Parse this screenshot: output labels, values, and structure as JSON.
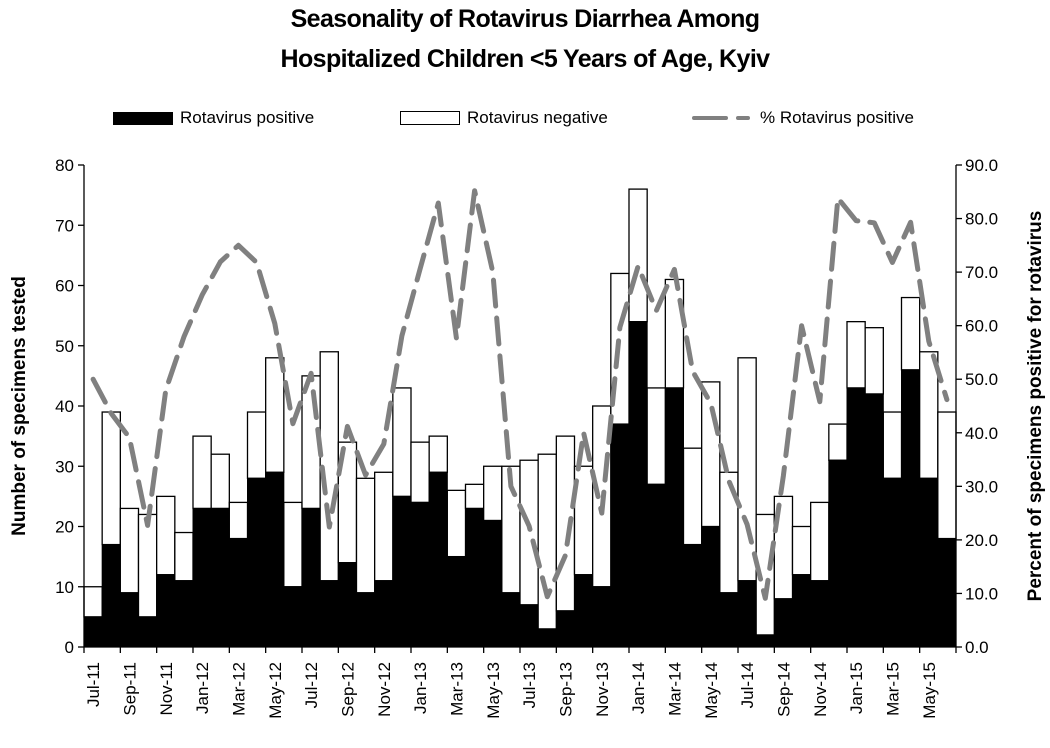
{
  "chart_data": {
    "type": "bar",
    "title": "Seasonality of Rotavirus Diarrhea Among Hospitalized Children <5 Years of Age, Kyiv",
    "title_lines": [
      "Seasonality of Rotavirus Diarrhea Among",
      "Hospitalized Children <5 Years of Age, Kyiv"
    ],
    "ylabel": "Number of specimens tested",
    "y2label": "Percent of specimens positive for rotavirus",
    "xlabel": "",
    "ylim": [
      0,
      80
    ],
    "y2lim": [
      0,
      90
    ],
    "yticks": [
      "0",
      "10",
      "20",
      "30",
      "40",
      "50",
      "60",
      "70",
      "80"
    ],
    "y2ticks": [
      "0.0",
      "10.0",
      "20.0",
      "30.0",
      "40.0",
      "50.0",
      "60.0",
      "70.0",
      "80.0",
      "90.0"
    ],
    "grid": false,
    "legend_position": "top",
    "legend": [
      {
        "label": "Rotavirus positive",
        "style": "black-fill"
      },
      {
        "label": "Rotavirus negative",
        "style": "white-fill"
      },
      {
        "label": "% Rotavirus positive",
        "style": "gray-dashed-line"
      }
    ],
    "colors": {
      "positive": "#000000",
      "negative": "#ffffff",
      "percent_line": "#808080"
    },
    "xtick_labels": [
      "Jul-11",
      "Sep-11",
      "Nov-11",
      "Jan-12",
      "Mar-12",
      "May-12",
      "Jul-12",
      "Sep-12",
      "Nov-12",
      "Jan-13",
      "Mar-13",
      "May-13",
      "Jul-13",
      "Sep-13",
      "Nov-13",
      "Jan-14",
      "Mar-14",
      "May-14",
      "Jul-14",
      "Sep-14",
      "Nov-14",
      "Jan-15",
      "Mar-15",
      "May-15"
    ],
    "categories": [
      "Jul-11",
      "Aug-11",
      "Sep-11",
      "Oct-11",
      "Nov-11",
      "Dec-11",
      "Jan-12",
      "Feb-12",
      "Mar-12",
      "Apr-12",
      "May-12",
      "Jun-12",
      "Jul-12",
      "Aug-12",
      "Sep-12",
      "Oct-12",
      "Nov-12",
      "Dec-12",
      "Jan-13",
      "Feb-13",
      "Mar-13",
      "Apr-13",
      "May-13",
      "Jun-13",
      "Jul-13",
      "Aug-13",
      "Sep-13",
      "Oct-13",
      "Nov-13",
      "Dec-13",
      "Jan-14",
      "Feb-14",
      "Mar-14",
      "Apr-14",
      "May-14",
      "Jun-14",
      "Jul-14",
      "Aug-14",
      "Sep-14",
      "Oct-14",
      "Nov-14",
      "Dec-14",
      "Jan-15",
      "Feb-15",
      "Mar-15",
      "Apr-15",
      "May-15",
      "Jun-15"
    ],
    "series": [
      {
        "name": "Rotavirus positive",
        "axis": "left",
        "kind": "stacked-bar",
        "values": [
          5,
          17,
          9,
          5,
          12,
          11,
          23,
          23,
          18,
          28,
          29,
          10,
          23,
          11,
          14,
          9,
          11,
          25,
          24,
          29,
          15,
          23,
          21,
          9,
          7,
          3,
          6,
          12,
          10,
          37,
          54,
          27,
          43,
          17,
          20,
          9,
          11,
          2,
          8,
          12,
          11,
          31,
          43,
          42,
          28,
          46,
          28,
          18
        ]
      },
      {
        "name": "Rotavirus negative",
        "axis": "left",
        "kind": "stacked-bar",
        "values": [
          5,
          22,
          14,
          17,
          13,
          8,
          12,
          9,
          6,
          11,
          19,
          14,
          22,
          38,
          20,
          19,
          18,
          18,
          10,
          6,
          11,
          4,
          9,
          21,
          24,
          29,
          29,
          18,
          30,
          25,
          22,
          16,
          18,
          16,
          24,
          20,
          37,
          20,
          17,
          8,
          13,
          6,
          11,
          11,
          11,
          12,
          21,
          21
        ]
      },
      {
        "name": "% Rotavirus positive",
        "axis": "right",
        "kind": "dashed-line",
        "values": [
          50.0,
          43.6,
          39.1,
          22.7,
          48.0,
          57.9,
          65.7,
          71.9,
          75.0,
          71.8,
          60.4,
          41.7,
          51.1,
          22.4,
          41.2,
          32.1,
          37.9,
          58.1,
          70.6,
          82.9,
          57.7,
          85.2,
          70.0,
          30.0,
          22.6,
          9.4,
          17.1,
          40.0,
          25.0,
          59.7,
          71.1,
          62.8,
          70.5,
          51.5,
          45.5,
          31.0,
          22.9,
          9.1,
          32.0,
          60.0,
          45.8,
          83.8,
          79.6,
          79.2,
          71.8,
          79.3,
          57.1,
          46.2
        ]
      }
    ]
  }
}
